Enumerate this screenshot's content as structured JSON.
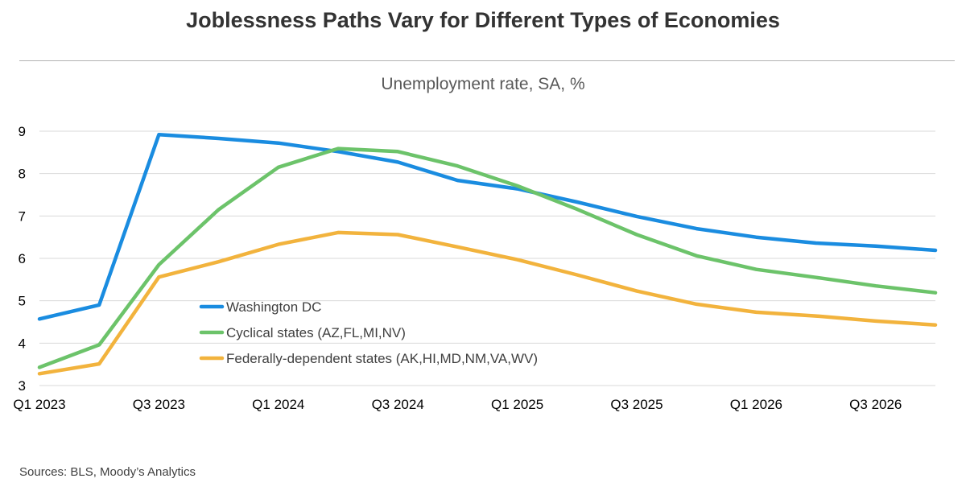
{
  "chart_data": {
    "type": "line",
    "title": "Joblessness Paths Vary for Different Types of Economies",
    "subtitle": "Unemployment rate, SA, %",
    "source": "Sources: BLS, Moody’s Analytics",
    "x": [
      "Q1 2023",
      "Q2 2023",
      "Q3 2023",
      "Q4 2023",
      "Q1 2024",
      "Q2 2024",
      "Q3 2024",
      "Q4 2024",
      "Q1 2025",
      "Q2 2025",
      "Q3 2025",
      "Q4 2025",
      "Q1 2026",
      "Q2 2026",
      "Q3 2026",
      "Q4 2026"
    ],
    "x_tick_labels": [
      "Q1 2023",
      "Q3 2023",
      "Q1 2024",
      "Q3 2024",
      "Q1 2025",
      "Q3 2025",
      "Q1 2026",
      "Q3 2026"
    ],
    "ylim": [
      3,
      9
    ],
    "yticks": [
      3,
      4,
      5,
      6,
      7,
      8,
      9
    ],
    "grid": true,
    "legend_position": "center-left",
    "series": [
      {
        "name": "Washington DC",
        "color": "#1a8ce0",
        "values": [
          4.57,
          4.9,
          8.92,
          8.83,
          8.72,
          8.52,
          8.27,
          7.84,
          7.64,
          7.33,
          6.99,
          6.7,
          6.5,
          6.36,
          6.29,
          6.19
        ]
      },
      {
        "name": "Cyclical states (AZ,FL,MI,NV)",
        "color": "#6cc36a",
        "values": [
          3.43,
          3.96,
          5.85,
          7.15,
          8.15,
          8.59,
          8.52,
          8.18,
          7.71,
          7.16,
          6.56,
          6.06,
          5.74,
          5.55,
          5.35,
          5.19
        ]
      },
      {
        "name": "Federally-dependent states (AK,HI,MD,NM,VA,WV)",
        "color": "#f2b33d",
        "values": [
          3.28,
          3.51,
          5.56,
          5.92,
          6.33,
          6.61,
          6.56,
          6.27,
          5.97,
          5.61,
          5.23,
          4.92,
          4.73,
          4.64,
          4.52,
          4.43
        ]
      }
    ]
  }
}
